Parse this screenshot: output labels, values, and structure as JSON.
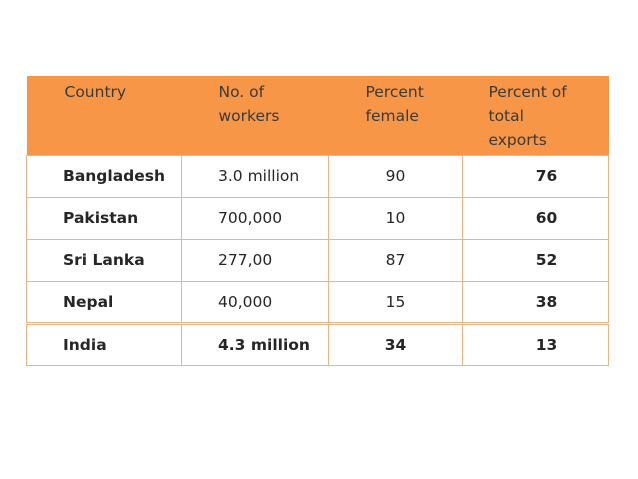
{
  "table": {
    "headers": [
      "Country",
      "No. of workers",
      "Percent female",
      "Percent of total exports"
    ],
    "header_lines": [
      [
        "Country"
      ],
      [
        "No. of",
        "workers"
      ],
      [
        "Percent",
        "female"
      ],
      [
        "Percent of",
        "total",
        "exports"
      ]
    ],
    "rows": [
      {
        "country": "Bangladesh",
        "workers": "3.0 million",
        "female": "90",
        "exports": "76"
      },
      {
        "country": "Pakistan",
        "workers": "700,000",
        "female": "10",
        "exports": "60"
      },
      {
        "country": "Sri Lanka",
        "workers": "277,00",
        "female": "87",
        "exports": "52"
      },
      {
        "country": "Nepal",
        "workers": "40,000",
        "female": "15",
        "exports": "38"
      },
      {
        "country": "India",
        "workers": "4.3 million",
        "female": "34",
        "exports": "13"
      }
    ]
  },
  "colors": {
    "header_background": "#f79646",
    "cell_border": "#f4b183",
    "text": "#262626"
  }
}
